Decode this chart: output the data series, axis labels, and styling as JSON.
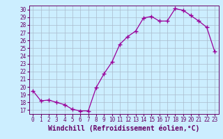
{
  "x": [
    0,
    1,
    2,
    3,
    4,
    5,
    6,
    7,
    8,
    9,
    10,
    11,
    12,
    13,
    14,
    15,
    16,
    17,
    18,
    19,
    20,
    21,
    22,
    23
  ],
  "y": [
    19.5,
    18.2,
    18.3,
    18.0,
    17.7,
    17.1,
    16.9,
    16.9,
    19.9,
    21.7,
    23.2,
    25.5,
    26.5,
    27.2,
    28.9,
    29.1,
    28.5,
    28.5,
    30.1,
    29.9,
    29.2,
    28.5,
    27.7,
    24.6
  ],
  "line_color": "#990099",
  "marker": "+",
  "marker_size": 4,
  "bg_color": "#cceeff",
  "grid_color": "#aabbcc",
  "xlabel": "Windchill (Refroidissement éolien,°C)",
  "xlim": [
    -0.5,
    23.5
  ],
  "ylim": [
    16.5,
    30.5
  ],
  "yticks": [
    17,
    18,
    19,
    20,
    21,
    22,
    23,
    24,
    25,
    26,
    27,
    28,
    29,
    30
  ],
  "xticks": [
    0,
    1,
    2,
    3,
    4,
    5,
    6,
    7,
    8,
    9,
    10,
    11,
    12,
    13,
    14,
    15,
    16,
    17,
    18,
    19,
    20,
    21,
    22,
    23
  ],
  "tick_label_color": "#660066",
  "tick_label_fontsize": 5.5,
  "xlabel_fontsize": 7.0,
  "xlabel_color": "#660066",
  "spine_color": "#660066",
  "line_width": 0.9,
  "marker_color": "#990099"
}
